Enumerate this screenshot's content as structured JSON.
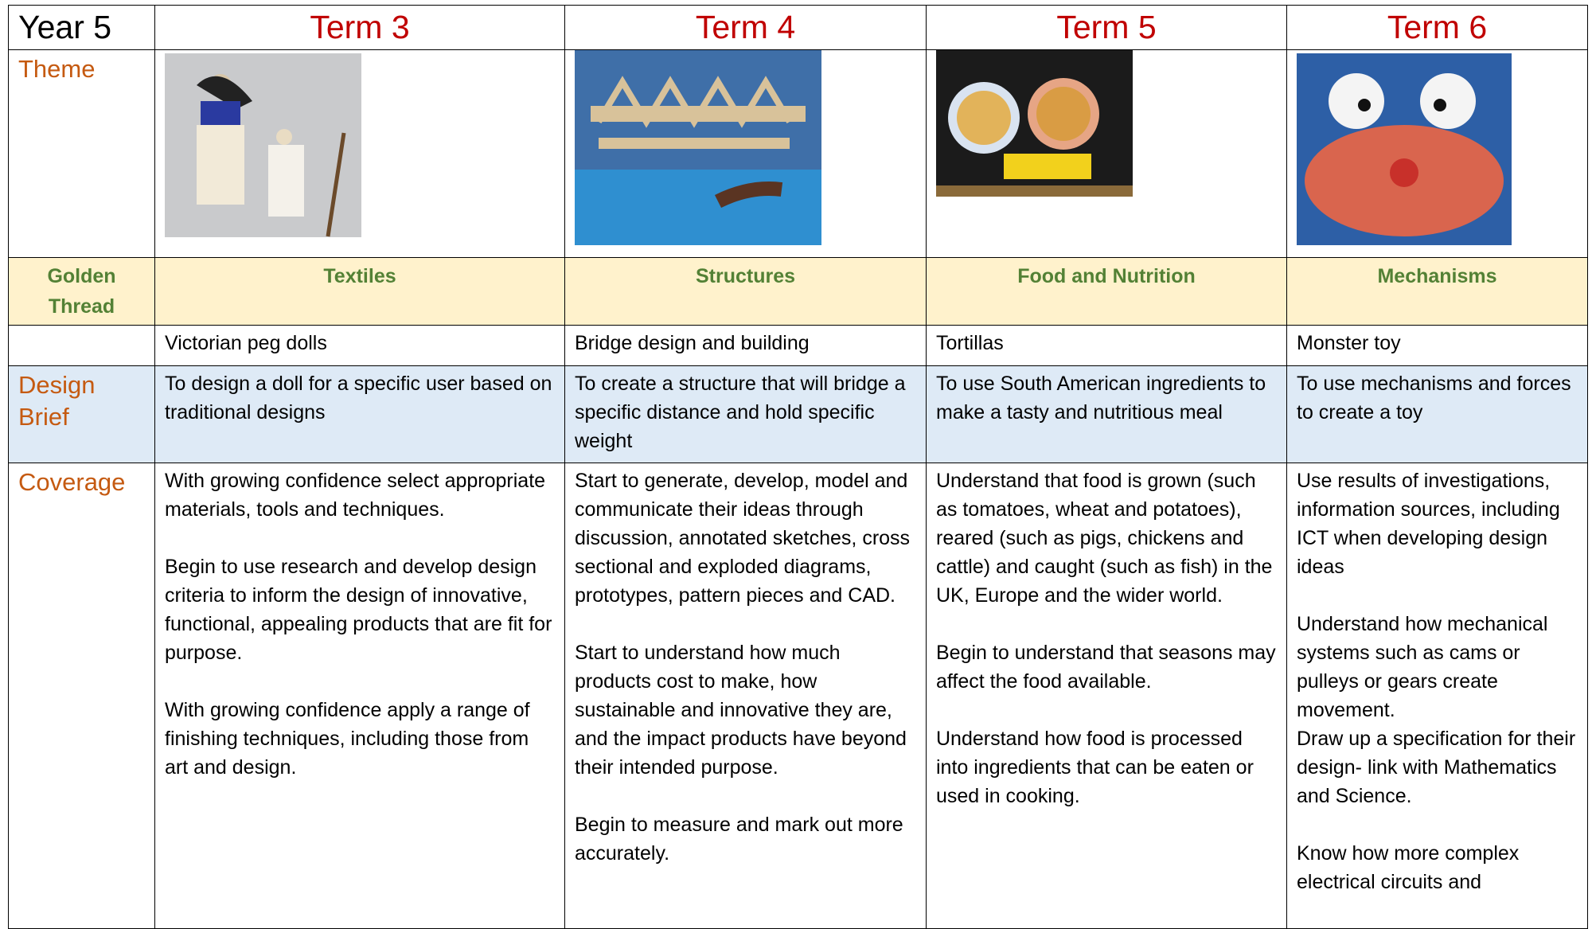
{
  "header": {
    "label": "Year 5",
    "terms": [
      "Term 3",
      "Term 4",
      "Term 5",
      "Term 6"
    ]
  },
  "theme": {
    "label": "Theme"
  },
  "golden_thread": {
    "label": "Golden Thread",
    "topics": [
      "Textiles",
      "Structures",
      "Food and Nutrition",
      "Mechanisms"
    ]
  },
  "projects": [
    "Victorian peg dolls",
    "Bridge design and building",
    "Tortillas",
    "Monster toy"
  ],
  "design_brief": {
    "label": "Design Brief",
    "cells": [
      "To design a doll for a specific user based on traditional designs",
      "To create a structure that will bridge a specific distance and hold specific weight",
      "To use South American ingredients to make a tasty and nutritious meal",
      "To use mechanisms and forces to create a toy"
    ]
  },
  "coverage": {
    "label": "Coverage",
    "cells": [
      [
        [
          "With growing confidence select appropriate materials, tools and techniques."
        ],
        [
          "Begin to use research and develop design criteria to inform the design of innovative, functional, appealing products that are fit for purpose."
        ],
        [
          "With growing confidence apply a range of finishing techniques, including those from art and design."
        ]
      ],
      [
        [
          "Start to generate, develop, model and communicate their ideas through discussion, annotated sketches, cross sectional and exploded diagrams, prototypes, pattern pieces and CAD."
        ],
        [
          "Start to understand how much products cost to make, how sustainable and innovative they are, and the impact products have beyond their intended purpose."
        ],
        [
          "Begin to measure and mark out more accurately."
        ]
      ],
      [
        [
          "Understand that food is grown (such as tomatoes, wheat and potatoes), reared (such as pigs, chickens and cattle) and caught (such as fish) in the UK, Europe and the wider world."
        ],
        [
          "Begin to understand that seasons may affect the food available."
        ],
        [
          "Understand how food is processed into ingredients that can be eaten or used in cooking."
        ]
      ],
      [
        [
          "Use results of investigations, information sources, including ICT when developing design ideas"
        ],
        [
          "Understand how mechanical systems such as cams or pulleys or gears create movement.",
          "Draw up a specification for their design- link with Mathematics and Science."
        ],
        [
          "Know how more complex electrical circuits and"
        ]
      ]
    ]
  }
}
